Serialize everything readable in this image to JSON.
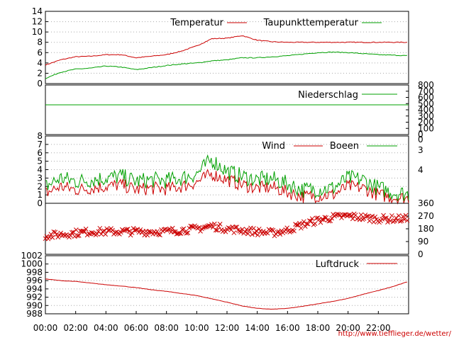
{
  "chart_data": [
    {
      "type": "line",
      "ylim": [
        0,
        14
      ],
      "yticks": [
        "0",
        "2",
        "4",
        "6",
        "8",
        "10",
        "12",
        "14"
      ],
      "grid": true,
      "legend": "top-right",
      "x_hours": [
        0,
        1,
        2,
        3,
        4,
        5,
        6,
        7,
        8,
        9,
        10,
        11,
        12,
        13,
        14,
        15,
        16,
        17,
        18,
        19,
        20,
        21,
        22,
        23,
        24
      ],
      "series": [
        {
          "name": "Temperatur",
          "color": "#cc0000",
          "values": [
            3.6,
            4.6,
            5.2,
            5.3,
            5.6,
            5.6,
            5.0,
            5.3,
            5.6,
            6.3,
            7.3,
            8.7,
            8.8,
            9.3,
            8.4,
            8.1,
            8.0,
            8.0,
            8.0,
            8.0,
            8.0,
            8.0,
            8.0,
            8.0,
            8.0
          ]
        },
        {
          "name": "Taupunkttemperatur",
          "color": "#00a000",
          "values": [
            1.0,
            2.2,
            2.8,
            3.0,
            3.4,
            3.2,
            2.7,
            3.1,
            3.5,
            3.8,
            4.0,
            4.4,
            4.6,
            5.0,
            5.0,
            5.2,
            5.4,
            5.7,
            6.0,
            6.1,
            6.0,
            5.8,
            5.6,
            5.5,
            5.4
          ]
        }
      ]
    },
    {
      "type": "line",
      "ylim": [
        0,
        800
      ],
      "yticks_right": [
        "0",
        "100",
        "200",
        "300",
        "400",
        "500",
        "600",
        "700",
        "800"
      ],
      "grid": false,
      "legend": "top-right",
      "series": [
        {
          "name": "Niederschlag",
          "color": "#00a000",
          "x_hours": [
            0,
            24
          ],
          "values": [
            480,
            480
          ]
        }
      ]
    },
    {
      "type": "line",
      "ylim": [
        0,
        8
      ],
      "yticks": [
        "0",
        "1",
        "2",
        "3",
        "4",
        "5",
        "6",
        "7",
        "8"
      ],
      "yticks_right": [
        "0",
        "3",
        "4"
      ],
      "grid": true,
      "legend": "top-right",
      "x_hours": [
        0,
        1,
        2,
        3,
        4,
        5,
        6,
        7,
        8,
        9,
        10,
        11,
        12,
        13,
        14,
        15,
        16,
        17,
        18,
        19,
        20,
        21,
        22,
        23,
        24
      ],
      "series": [
        {
          "name": "Wind",
          "color": "#cc0000",
          "values": [
            1.2,
            2.0,
            1.6,
            1.8,
            2.0,
            2.2,
            1.6,
            1.8,
            1.7,
            2.0,
            2.5,
            3.5,
            2.8,
            2.2,
            1.8,
            1.9,
            1.3,
            0.8,
            0.9,
            1.0,
            2.0,
            1.8,
            1.0,
            0.7,
            0.6
          ]
        },
        {
          "name": "Boeen",
          "color": "#00a000",
          "values": [
            2.0,
            3.0,
            2.6,
            2.8,
            3.0,
            3.2,
            2.6,
            2.8,
            2.7,
            3.0,
            3.5,
            5.2,
            3.8,
            3.2,
            2.8,
            2.9,
            2.3,
            1.6,
            1.7,
            1.8,
            3.0,
            2.8,
            1.8,
            1.3,
            1.1
          ]
        }
      ]
    },
    {
      "type": "scatter",
      "ylim": [
        0,
        360
      ],
      "yticks_right": [
        "0",
        "90",
        "180",
        "270",
        "360"
      ],
      "grid": false,
      "x_hours": [
        0,
        1,
        2,
        3,
        4,
        5,
        6,
        7,
        8,
        9,
        10,
        11,
        12,
        13,
        14,
        15,
        16,
        17,
        18,
        19,
        20,
        21,
        22,
        23,
        24
      ],
      "series": [
        {
          "color": "#cc0000",
          "values": [
            130,
            140,
            150,
            160,
            160,
            160,
            160,
            160,
            160,
            170,
            180,
            200,
            180,
            170,
            160,
            150,
            170,
            210,
            240,
            260,
            270,
            260,
            250,
            250,
            250
          ]
        }
      ]
    },
    {
      "type": "line",
      "ylim": [
        988,
        1002
      ],
      "yticks": [
        "988",
        "990",
        "992",
        "994",
        "996",
        "998",
        "1000",
        "1002"
      ],
      "grid": true,
      "legend": "top-right",
      "x_hours": [
        0,
        1,
        2,
        3,
        4,
        5,
        6,
        7,
        8,
        9,
        10,
        11,
        12,
        13,
        14,
        15,
        16,
        17,
        18,
        19,
        20,
        21,
        22,
        23,
        24
      ],
      "series": [
        {
          "name": "Luftdruck",
          "color": "#cc0000",
          "values": [
            996.4,
            996.0,
            995.8,
            995.4,
            995.0,
            994.7,
            994.3,
            993.8,
            993.4,
            992.9,
            992.4,
            991.6,
            990.8,
            989.9,
            989.3,
            989.1,
            989.3,
            989.8,
            990.4,
            991.0,
            991.7,
            992.7,
            993.6,
            994.6,
            995.8
          ]
        }
      ]
    }
  ],
  "x_axis": {
    "ticks": [
      "00:00",
      "02:00",
      "04:00",
      "06:00",
      "08:00",
      "10:00",
      "12:00",
      "14:00",
      "16:00",
      "18:00",
      "20:00",
      "22:00"
    ],
    "tick_hours": [
      0,
      2,
      4,
      6,
      8,
      10,
      12,
      14,
      16,
      18,
      20,
      22
    ],
    "range_hours": [
      0,
      24
    ]
  },
  "credit": "http://www.tiefflieger.de/wetter/"
}
